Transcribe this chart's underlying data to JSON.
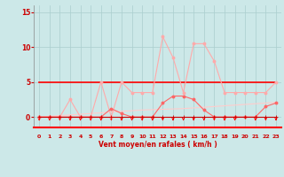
{
  "x": [
    0,
    1,
    2,
    3,
    4,
    5,
    6,
    7,
    8,
    9,
    10,
    11,
    12,
    13,
    14,
    15,
    16,
    17,
    18,
    19,
    20,
    21,
    22,
    23
  ],
  "line_rafales": [
    0,
    0,
    0,
    2.5,
    0,
    0,
    5,
    0,
    5,
    3.5,
    3.5,
    3.5,
    11.5,
    8.5,
    3.5,
    10.5,
    10.5,
    8,
    3.5,
    3.5,
    3.5,
    3.5,
    3.5,
    5
  ],
  "line_moyen": [
    0,
    0,
    0,
    0,
    0,
    0,
    0,
    1.2,
    0.5,
    0,
    0,
    0,
    2,
    3,
    3,
    2.5,
    1,
    0,
    0,
    0,
    0,
    0,
    1.5,
    2
  ],
  "line_linear": [
    0,
    0.1,
    0.2,
    0.3,
    0.4,
    0.5,
    0.6,
    0.7,
    0.8,
    0.9,
    1.0,
    1.05,
    1.1,
    1.15,
    1.2,
    1.3,
    1.4,
    1.5,
    1.6,
    1.7,
    1.8,
    1.9,
    2.0,
    2.1
  ],
  "line_flat": [
    5,
    5,
    5,
    5,
    5,
    5,
    5,
    5,
    5,
    5,
    5,
    5,
    5,
    5,
    5,
    5,
    5,
    5,
    5,
    5,
    5,
    5,
    5,
    5
  ],
  "line_zero": [
    0,
    0,
    0,
    0,
    0,
    0,
    0,
    0,
    0,
    0,
    0,
    0,
    0,
    0,
    0,
    0,
    0,
    0,
    0,
    0,
    0,
    0,
    0,
    0
  ],
  "color_rafales": "#ffaaaa",
  "color_moyen": "#ff6666",
  "color_linear": "#ffcccc",
  "color_flat": "#ff0000",
  "color_zero_line": "#cc0000",
  "bg_color": "#cce8e8",
  "grid_color": "#aacece",
  "text_color": "#cc0000",
  "xlabel": "Vent moyen/en rafales ( km/h )",
  "ylim": [
    -1.5,
    16
  ],
  "xlim": [
    -0.5,
    23.5
  ],
  "yticks": [
    0,
    5,
    10,
    15
  ],
  "xticks": [
    0,
    1,
    2,
    3,
    4,
    5,
    6,
    7,
    8,
    9,
    10,
    11,
    12,
    13,
    14,
    15,
    16,
    17,
    18,
    19,
    20,
    21,
    22,
    23
  ],
  "arrow_hours": [
    0,
    1,
    2,
    3,
    4,
    5,
    6,
    7,
    8,
    9,
    10,
    11,
    12,
    13,
    14,
    15,
    16,
    17,
    18,
    19,
    21,
    22,
    23
  ]
}
